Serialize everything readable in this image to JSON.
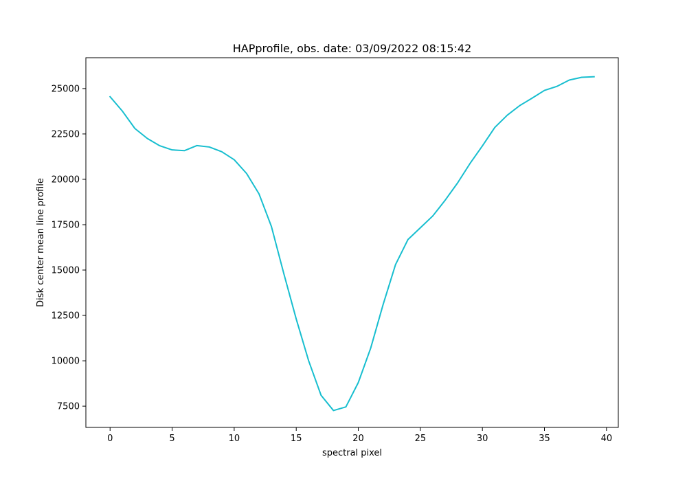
{
  "chart_data": {
    "type": "line",
    "title": "HAPprofile, obs. date: 03/09/2022 08:15:42",
    "xlabel": "spectral pixel",
    "ylabel": "Disk center mean line profile",
    "xlim": [
      -1.95,
      40.95
    ],
    "ylim": [
      6330,
      26700
    ],
    "xticks": [
      0,
      5,
      10,
      15,
      20,
      25,
      30,
      35,
      40
    ],
    "yticks": [
      7500,
      10000,
      12500,
      15000,
      17500,
      20000,
      22500,
      25000
    ],
    "xtick_labels": [
      "0",
      "5",
      "10",
      "15",
      "20",
      "25",
      "30",
      "35",
      "40"
    ],
    "ytick_labels": [
      "7500",
      "10000",
      "12500",
      "15000",
      "17500",
      "20000",
      "22500",
      "25000"
    ],
    "grid": false,
    "series": [
      {
        "color": "#17becf",
        "x": [
          0,
          1,
          2,
          3,
          4,
          5,
          6,
          7,
          8,
          9,
          10,
          11,
          12,
          13,
          14,
          15,
          16,
          17,
          18,
          19,
          20,
          21,
          22,
          23,
          24,
          25,
          26,
          27,
          28,
          29,
          30,
          31,
          32,
          33,
          34,
          35,
          36,
          37,
          38,
          39
        ],
        "values": [
          24550,
          23750,
          22800,
          22250,
          21850,
          21620,
          21580,
          21860,
          21780,
          21520,
          21080,
          20320,
          19200,
          17400,
          14800,
          12300,
          10000,
          8100,
          7260,
          7460,
          8800,
          10700,
          13100,
          15300,
          16680,
          17330,
          17980,
          18850,
          19800,
          20870,
          21840,
          22860,
          23530,
          24060,
          24470,
          24900,
          25120,
          25470,
          25620,
          25650
        ]
      }
    ]
  }
}
